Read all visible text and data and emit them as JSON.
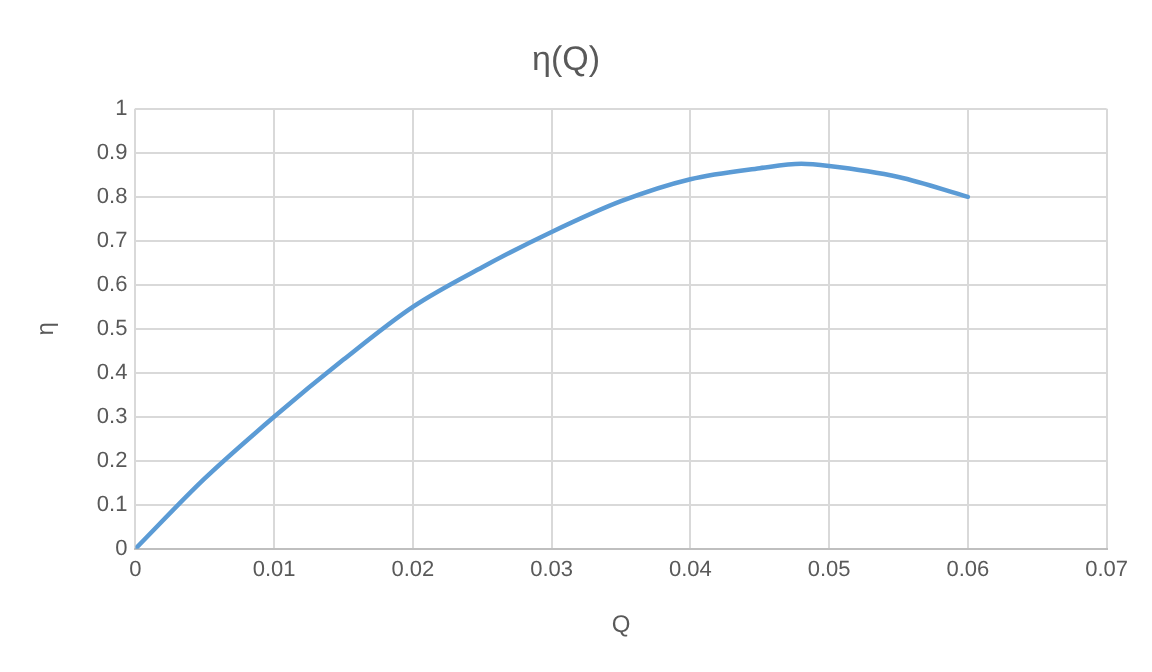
{
  "chart_data": {
    "type": "line",
    "title": "η(Q)",
    "xlabel": "Q",
    "ylabel": "η",
    "xlim": [
      0,
      0.07
    ],
    "xticks": [
      0,
      0.01,
      0.02,
      0.03,
      0.04,
      0.05,
      0.06,
      0.07
    ],
    "ylim": [
      0,
      1
    ],
    "yticks": [
      0,
      0.1,
      0.2,
      0.3,
      0.4,
      0.5,
      0.6,
      0.7,
      0.8,
      0.9,
      1
    ],
    "grid": true,
    "legend": false,
    "marker": "none",
    "line_style": "solid",
    "series": [
      {
        "color": "#5b9bd5",
        "x": [
          0,
          0.005,
          0.01,
          0.015,
          0.02,
          0.025,
          0.03,
          0.035,
          0.04,
          0.045,
          0.048,
          0.05,
          0.055,
          0.06
        ],
        "values": [
          0,
          0.16,
          0.3,
          0.43,
          0.55,
          0.64,
          0.72,
          0.79,
          0.84,
          0.865,
          0.875,
          0.87,
          0.845,
          0.8
        ]
      }
    ]
  }
}
